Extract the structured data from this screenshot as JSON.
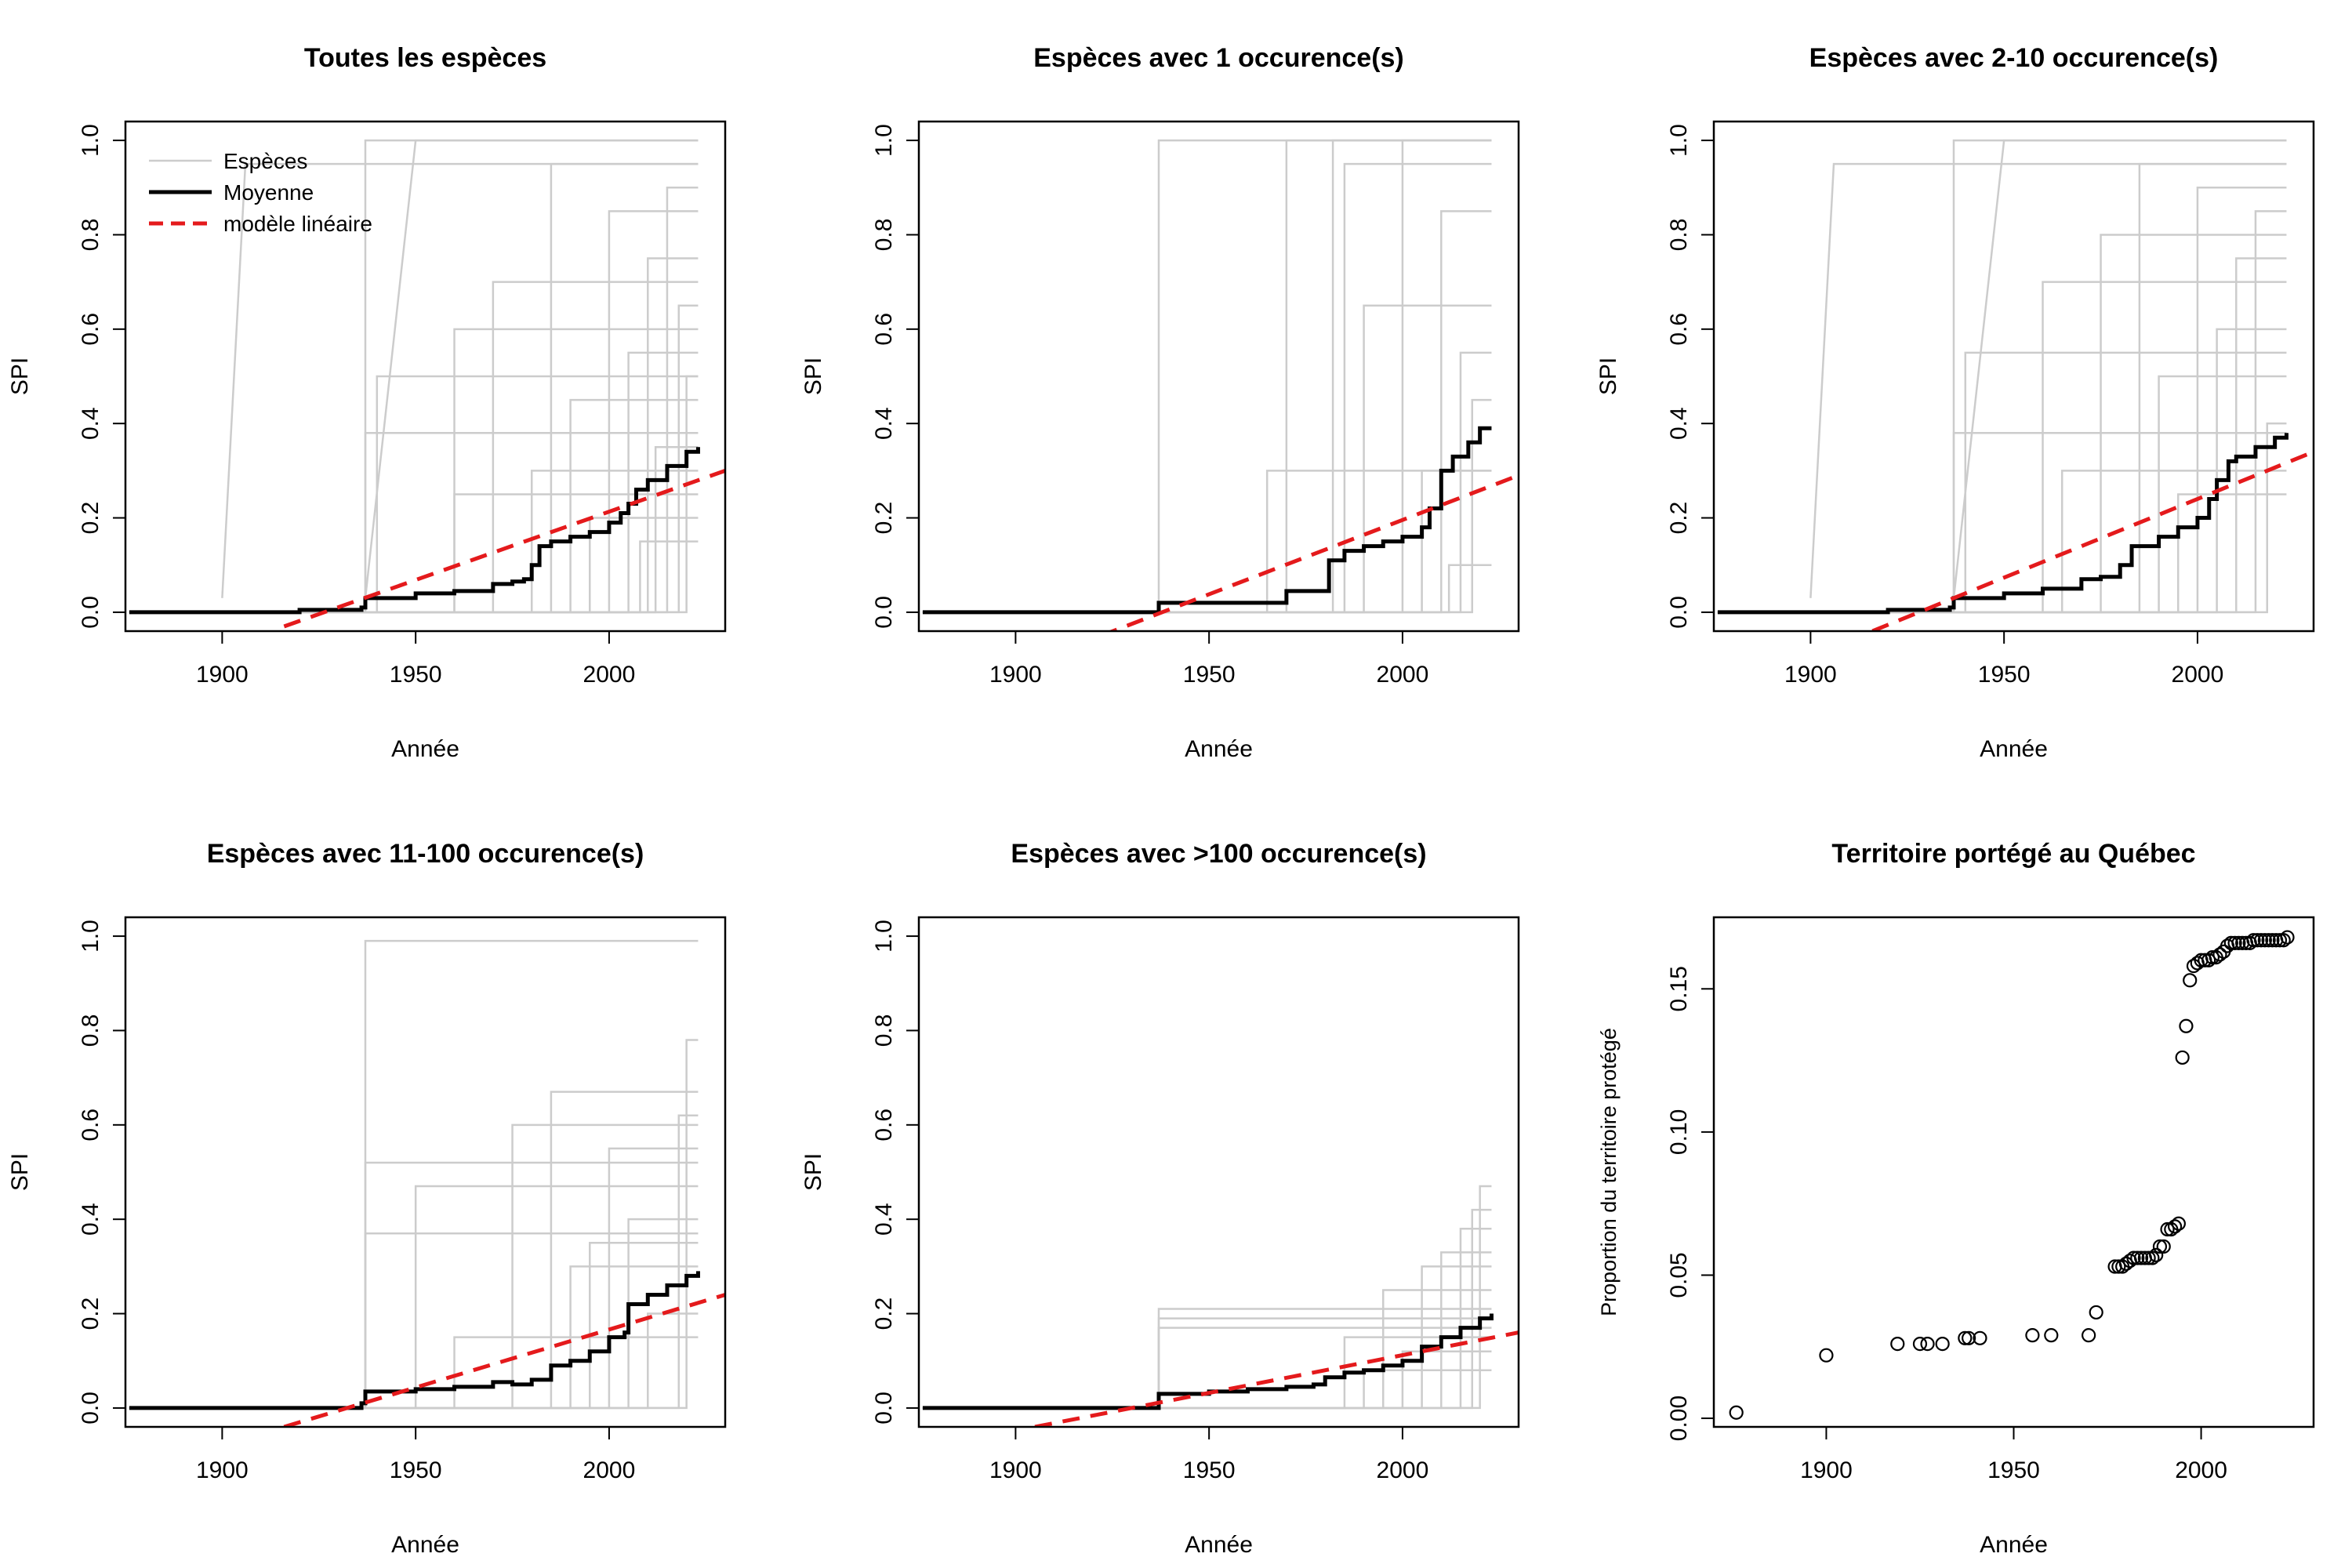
{
  "chart_data": [
    {
      "type": "line",
      "title": "Toutes les espèces",
      "xlabel": "Année",
      "ylabel": "SPI",
      "xlim": [
        1875,
        2030
      ],
      "ylim": [
        -0.04,
        1.04
      ],
      "xticks": [
        "1900",
        "1950",
        "2000"
      ],
      "yticks": [
        "0.0",
        "0.2",
        "0.4",
        "0.6",
        "0.8",
        "1.0"
      ],
      "legend": {
        "position": "top-left",
        "entries": [
          {
            "label": "Espèces",
            "color": "#cccccc",
            "style": "solid"
          },
          {
            "label": "Moyenne",
            "color": "#000000",
            "style": "solid"
          },
          {
            "label": "modèle linéaire",
            "color": "#e41a1c",
            "style": "dashed"
          }
        ]
      },
      "mean": {
        "name": "Moyenne",
        "x": [
          1876,
          1900,
          1920,
          1936,
          1937,
          1950,
          1960,
          1970,
          1975,
          1978,
          1980,
          1982,
          1985,
          1990,
          1995,
          2000,
          2003,
          2005,
          2007,
          2010,
          2015,
          2020,
          2023
        ],
        "y": [
          0.0,
          0.0,
          0.005,
          0.01,
          0.03,
          0.04,
          0.045,
          0.06,
          0.065,
          0.07,
          0.1,
          0.14,
          0.15,
          0.16,
          0.17,
          0.19,
          0.21,
          0.23,
          0.26,
          0.28,
          0.31,
          0.34,
          0.35
        ]
      },
      "trend": {
        "name": "modèle linéaire",
        "x": [
          1916,
          2030
        ],
        "y": [
          -0.03,
          0.3
        ]
      },
      "species_steps": [
        [
          1937,
          0.38
        ],
        [
          1937,
          1.0
        ],
        [
          1940,
          0.5
        ],
        [
          1960,
          0.6
        ],
        [
          1970,
          0.7
        ],
        [
          1985,
          0.95
        ],
        [
          1990,
          0.45
        ],
        [
          2000,
          0.85
        ],
        [
          2005,
          0.55
        ],
        [
          2010,
          0.75
        ],
        [
          2012,
          0.35
        ],
        [
          2015,
          0.9
        ],
        [
          2018,
          0.65
        ],
        [
          1960,
          0.25
        ],
        [
          1980,
          0.3
        ],
        [
          1995,
          0.2
        ],
        [
          2008,
          0.15
        ],
        [
          2020,
          0.5
        ]
      ],
      "species_early": [
        [
          1900,
          0.95,
          1906
        ],
        [
          1937,
          1.0,
          1950
        ]
      ]
    },
    {
      "type": "line",
      "title": "Espèces avec 1 occurence(s)",
      "xlabel": "Année",
      "ylabel": "SPI",
      "xlim": [
        1875,
        2030
      ],
      "ylim": [
        -0.04,
        1.04
      ],
      "xticks": [
        "1900",
        "1950",
        "2000"
      ],
      "yticks": [
        "0.0",
        "0.2",
        "0.4",
        "0.6",
        "0.8",
        "1.0"
      ],
      "mean": {
        "name": "Moyenne",
        "x": [
          1876,
          1935,
          1937,
          1960,
          1970,
          1980,
          1981,
          1985,
          1990,
          1995,
          2000,
          2005,
          2007,
          2010,
          2013,
          2017,
          2020,
          2023
        ],
        "y": [
          0.0,
          0.0,
          0.02,
          0.02,
          0.045,
          0.045,
          0.11,
          0.13,
          0.14,
          0.15,
          0.16,
          0.18,
          0.22,
          0.3,
          0.33,
          0.36,
          0.39,
          0.39
        ]
      },
      "trend": {
        "name": "modèle linéaire",
        "x": [
          1922,
          2030
        ],
        "y": [
          -0.05,
          0.29
        ]
      },
      "species_steps": [
        [
          1937,
          1.0
        ],
        [
          1970,
          1.0
        ],
        [
          1982,
          1.0
        ],
        [
          1985,
          0.95
        ],
        [
          1990,
          0.65
        ],
        [
          2000,
          1.0
        ],
        [
          2005,
          0.3
        ],
        [
          2010,
          0.85
        ],
        [
          2015,
          0.55
        ],
        [
          1965,
          0.3
        ],
        [
          2012,
          0.1
        ],
        [
          2018,
          0.45
        ]
      ],
      "species_early": []
    },
    {
      "type": "line",
      "title": "Espèces avec 2-10 occurence(s)",
      "xlabel": "Année",
      "ylabel": "SPI",
      "xlim": [
        1875,
        2030
      ],
      "ylim": [
        -0.04,
        1.04
      ],
      "xticks": [
        "1900",
        "1950",
        "2000"
      ],
      "yticks": [
        "0.0",
        "0.2",
        "0.4",
        "0.6",
        "0.8",
        "1.0"
      ],
      "mean": {
        "name": "Moyenne",
        "x": [
          1876,
          1900,
          1920,
          1936,
          1937,
          1950,
          1960,
          1970,
          1975,
          1980,
          1983,
          1990,
          1995,
          2000,
          2003,
          2005,
          2008,
          2010,
          2015,
          2020,
          2023
        ],
        "y": [
          0.0,
          0.0,
          0.005,
          0.01,
          0.03,
          0.04,
          0.05,
          0.07,
          0.075,
          0.1,
          0.14,
          0.16,
          0.18,
          0.2,
          0.24,
          0.28,
          0.32,
          0.33,
          0.35,
          0.37,
          0.38
        ]
      },
      "trend": {
        "name": "modèle linéaire",
        "x": [
          1916,
          2030
        ],
        "y": [
          -0.04,
          0.34
        ]
      },
      "species_steps": [
        [
          1937,
          0.38
        ],
        [
          1937,
          1.0
        ],
        [
          1940,
          0.55
        ],
        [
          1960,
          0.7
        ],
        [
          1975,
          0.8
        ],
        [
          1985,
          0.95
        ],
        [
          1990,
          0.5
        ],
        [
          2000,
          0.9
        ],
        [
          2005,
          0.6
        ],
        [
          2010,
          0.75
        ],
        [
          2015,
          0.85
        ],
        [
          2018,
          0.4
        ],
        [
          1965,
          0.3
        ],
        [
          1995,
          0.25
        ]
      ],
      "species_early": [
        [
          1900,
          0.95,
          1906
        ],
        [
          1937,
          1.0,
          1950
        ]
      ]
    },
    {
      "type": "line",
      "title": "Espèces avec 11-100 occurence(s)",
      "xlabel": "Année",
      "ylabel": "SPI",
      "xlim": [
        1875,
        2030
      ],
      "ylim": [
        -0.04,
        1.04
      ],
      "xticks": [
        "1900",
        "1950",
        "2000"
      ],
      "yticks": [
        "0.0",
        "0.2",
        "0.4",
        "0.6",
        "0.8",
        "1.0"
      ],
      "mean": {
        "name": "Moyenne",
        "x": [
          1876,
          1930,
          1936,
          1937,
          1950,
          1960,
          1970,
          1975,
          1980,
          1985,
          1990,
          1995,
          2000,
          2004,
          2005,
          2010,
          2015,
          2020,
          2023
        ],
        "y": [
          0.0,
          0.0,
          0.01,
          0.035,
          0.04,
          0.045,
          0.055,
          0.05,
          0.06,
          0.09,
          0.1,
          0.12,
          0.15,
          0.16,
          0.22,
          0.24,
          0.26,
          0.28,
          0.29
        ]
      },
      "trend": {
        "name": "modèle linéaire",
        "x": [
          1916,
          2030
        ],
        "y": [
          -0.04,
          0.24
        ]
      },
      "species_steps": [
        [
          1937,
          0.99
        ],
        [
          1937,
          0.52
        ],
        [
          1937,
          0.37
        ],
        [
          1950,
          0.47
        ],
        [
          1975,
          0.6
        ],
        [
          1985,
          0.67
        ],
        [
          1990,
          0.3
        ],
        [
          2000,
          0.55
        ],
        [
          2005,
          0.4
        ],
        [
          2010,
          0.2
        ],
        [
          2018,
          0.62
        ],
        [
          1960,
          0.15
        ],
        [
          1995,
          0.35
        ],
        [
          2020,
          0.78
        ]
      ],
      "species_early": []
    },
    {
      "type": "line",
      "title": "Espèces avec >100 occurence(s)",
      "xlabel": "Année",
      "ylabel": "SPI",
      "xlim": [
        1875,
        2030
      ],
      "ylim": [
        -0.04,
        1.04
      ],
      "xticks": [
        "1900",
        "1950",
        "2000"
      ],
      "yticks": [
        "0.0",
        "0.2",
        "0.4",
        "0.6",
        "0.8",
        "1.0"
      ],
      "mean": {
        "name": "Moyenne",
        "x": [
          1876,
          1935,
          1937,
          1950,
          1960,
          1970,
          1977,
          1980,
          1985,
          1990,
          1995,
          2000,
          2005,
          2010,
          2015,
          2020,
          2023
        ],
        "y": [
          0.0,
          0.0,
          0.03,
          0.035,
          0.04,
          0.045,
          0.05,
          0.065,
          0.075,
          0.08,
          0.09,
          0.1,
          0.13,
          0.15,
          0.17,
          0.19,
          0.2
        ]
      },
      "trend": {
        "name": "modèle linéaire",
        "x": [
          1905,
          2030
        ],
        "y": [
          -0.04,
          0.16
        ]
      },
      "species_steps": [
        [
          1937,
          0.21
        ],
        [
          1937,
          0.19
        ],
        [
          1937,
          0.17
        ],
        [
          1985,
          0.15
        ],
        [
          1995,
          0.25
        ],
        [
          2005,
          0.3
        ],
        [
          2010,
          0.33
        ],
        [
          2015,
          0.38
        ],
        [
          2020,
          0.47
        ],
        [
          2018,
          0.42
        ],
        [
          2000,
          0.12
        ],
        [
          1990,
          0.08
        ]
      ],
      "species_early": []
    },
    {
      "type": "scatter",
      "title": "Territoire portégé au Québec",
      "xlabel": "Année",
      "ylabel": "Proportion du territoire protégé",
      "xlim": [
        1870,
        2030
      ],
      "ylim": [
        -0.003,
        0.175
      ],
      "xticks": [
        "1900",
        "1950",
        "2000"
      ],
      "yticks": [
        "0.00",
        "0.05",
        "0.10",
        "0.15"
      ],
      "points": {
        "x": [
          1876,
          1900,
          1919,
          1925,
          1927,
          1931,
          1937,
          1938,
          1941,
          1955,
          1960,
          1970,
          1972,
          1977,
          1978,
          1979,
          1980,
          1981,
          1982,
          1983,
          1984,
          1985,
          1986,
          1987,
          1988,
          1989,
          1990,
          1991,
          1992,
          1993,
          1994,
          1995,
          1996,
          1997,
          1998,
          1999,
          2000,
          2001,
          2002,
          2003,
          2004,
          2005,
          2006,
          2007,
          2008,
          2009,
          2010,
          2011,
          2012,
          2013,
          2014,
          2015,
          2016,
          2017,
          2018,
          2019,
          2020,
          2021,
          2022,
          2023
        ],
        "y": [
          0.002,
          0.022,
          0.026,
          0.026,
          0.026,
          0.026,
          0.028,
          0.028,
          0.028,
          0.029,
          0.029,
          0.029,
          0.037,
          0.053,
          0.053,
          0.053,
          0.054,
          0.055,
          0.056,
          0.056,
          0.056,
          0.056,
          0.056,
          0.056,
          0.057,
          0.06,
          0.06,
          0.066,
          0.066,
          0.067,
          0.068,
          0.126,
          0.137,
          0.153,
          0.158,
          0.159,
          0.16,
          0.16,
          0.16,
          0.161,
          0.161,
          0.162,
          0.163,
          0.165,
          0.166,
          0.166,
          0.166,
          0.166,
          0.166,
          0.166,
          0.167,
          0.167,
          0.167,
          0.167,
          0.167,
          0.167,
          0.167,
          0.167,
          0.167,
          0.168
        ]
      }
    }
  ]
}
